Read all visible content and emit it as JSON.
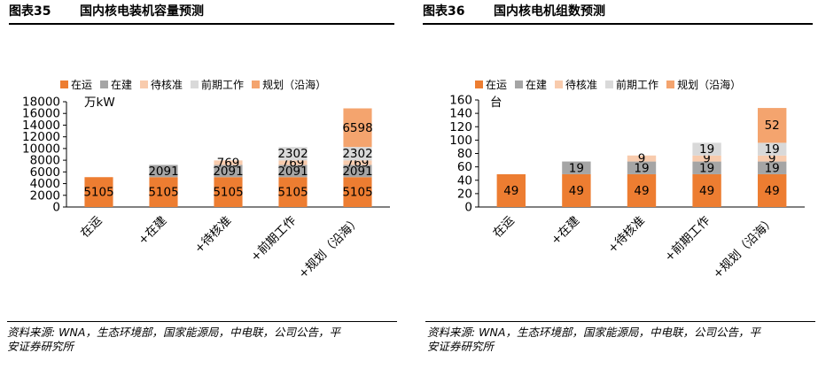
{
  "panels": [
    {
      "figure_no": "图表35",
      "figure_title": "国内核电装机容量预测",
      "source": [
        "资料来源: WNA，生态环境部，国家能源局，中电联，公司公告，平",
        "安证券研究所"
      ]
    },
    {
      "figure_no": "图表36",
      "figure_title": "国内核电机组数预测",
      "source": [
        "资料来源: WNA，生态环境部，国家能源局，中电联，公司公告，平",
        "安证券研究所"
      ]
    }
  ],
  "chart_data": [
    {
      "type": "bar",
      "stacked": true,
      "unit": "万kW",
      "categories": [
        "在运",
        "+在建",
        "+待核准",
        "+前期工作",
        "+规划（沿海）"
      ],
      "ylim": [
        0,
        18000
      ],
      "yticks": [
        0,
        2000,
        4000,
        6000,
        8000,
        10000,
        12000,
        14000,
        16000,
        18000
      ],
      "legend_position": "top",
      "grid": false,
      "series": [
        {
          "name": "在运",
          "color": "#ED7D31",
          "values": [
            5105,
            5105,
            5105,
            5105,
            5105
          ]
        },
        {
          "name": "在建",
          "color": "#A5A5A5",
          "values": [
            0,
            2091,
            2091,
            2091,
            2091
          ]
        },
        {
          "name": "待核准",
          "color": "#F8CBAD",
          "values": [
            0,
            0,
            769,
            769,
            769
          ]
        },
        {
          "name": "前期工作",
          "color": "#D9D9D9",
          "values": [
            0,
            0,
            0,
            2302,
            2302
          ]
        },
        {
          "name": "规划（沿海）",
          "color": "#F4A46E",
          "values": [
            0,
            0,
            0,
            0,
            6598
          ]
        }
      ]
    },
    {
      "type": "bar",
      "stacked": true,
      "unit": "台",
      "categories": [
        "在运",
        "+在建",
        "+待核准",
        "+前期工作",
        "+规划（沿海）"
      ],
      "ylim": [
        0,
        160
      ],
      "yticks": [
        0,
        20,
        40,
        60,
        80,
        100,
        120,
        140,
        160
      ],
      "legend_position": "top",
      "grid": false,
      "series": [
        {
          "name": "在运",
          "color": "#ED7D31",
          "values": [
            49,
            49,
            49,
            49,
            49
          ]
        },
        {
          "name": "在建",
          "color": "#A5A5A5",
          "values": [
            0,
            19,
            19,
            19,
            19
          ]
        },
        {
          "name": "待核准",
          "color": "#F8CBAD",
          "values": [
            0,
            0,
            9,
            9,
            9
          ]
        },
        {
          "name": "前期工作",
          "color": "#D9D9D9",
          "values": [
            0,
            0,
            0,
            19,
            19
          ]
        },
        {
          "name": "规划（沿海）",
          "color": "#F4A46E",
          "values": [
            0,
            0,
            0,
            0,
            52
          ]
        }
      ]
    }
  ]
}
